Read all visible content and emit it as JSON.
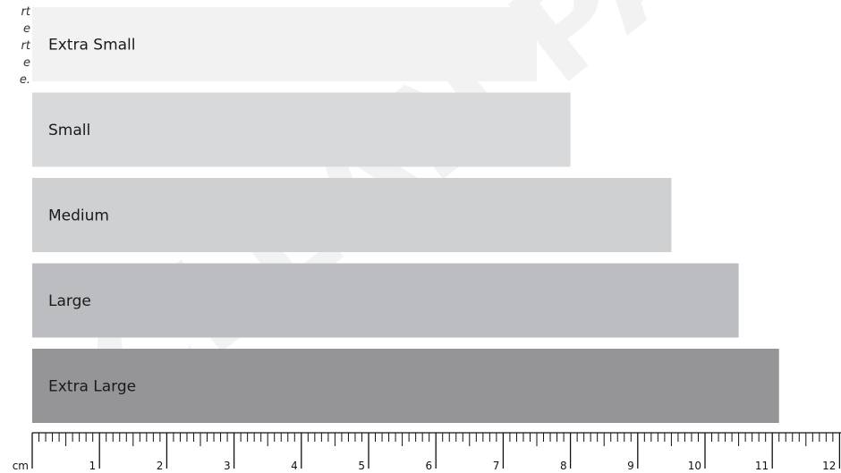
{
  "side_note": {
    "lines": [
      "rt",
      "e",
      "rt",
      "e",
      "e."
    ]
  },
  "watermark": "CLEAN PACK",
  "chart_data": {
    "type": "bar",
    "orientation": "horizontal",
    "categories": [
      "Extra Small",
      "Small",
      "Medium",
      "Large",
      "Extra Large"
    ],
    "values": [
      7.5,
      8.0,
      9.5,
      10.5,
      11.1
    ],
    "unit": "cm",
    "xlim": [
      0,
      12
    ],
    "x_ticks": [
      1,
      2,
      3,
      4,
      5,
      6,
      7,
      8,
      9,
      10,
      11,
      12
    ],
    "axis_unit_label": "cm",
    "colors": [
      "#f2f2f3",
      "#d8d9db",
      "#cfd0d2",
      "#bcbdc0",
      "#959598"
    ],
    "label_color": "#1a1a1a",
    "ruler_color": "#111111",
    "watermark_color": "#e9e9eb"
  }
}
